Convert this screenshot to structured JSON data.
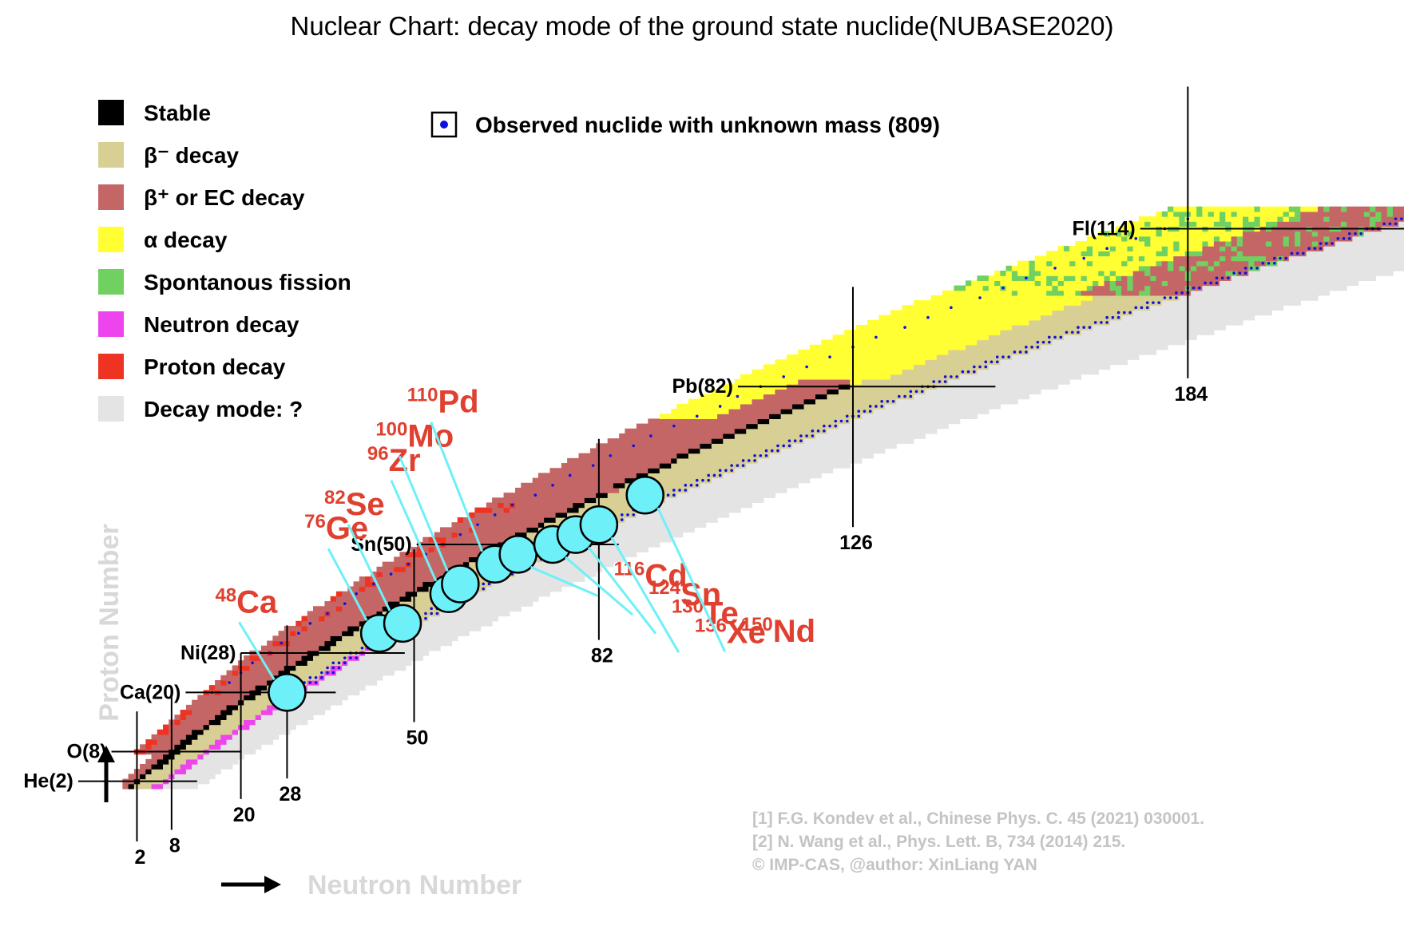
{
  "chart_data": {
    "type": "heatmap",
    "title": "Nuclear Chart: decay mode of the ground state nuclide(NUBASE2020)",
    "xlabel": "Neutron Number",
    "ylabel": "Proton Number",
    "legend": [
      {
        "key": "stable",
        "label": "Stable",
        "color": "#000000"
      },
      {
        "key": "beta_minus",
        "label": "β⁻ decay",
        "color": "#d8cf94"
      },
      {
        "key": "beta_plus",
        "label": "β⁺ or EC decay",
        "color": "#c46666"
      },
      {
        "key": "alpha",
        "label": "α decay",
        "color": "#ffff33"
      },
      {
        "key": "sf",
        "label": "Spontanous fission",
        "color": "#70d060"
      },
      {
        "key": "neutron",
        "label": "Neutron decay",
        "color": "#ee44ee"
      },
      {
        "key": "proton",
        "label": "Proton decay",
        "color": "#ee3322"
      },
      {
        "key": "unknown",
        "label": "Decay mode: ?",
        "color": "#e4e4e4"
      }
    ],
    "legend_unknown_mass": {
      "label": "Observed nuclide with unknown mass (809)",
      "color": "#1010dd"
    },
    "magic_protons": [
      {
        "label": "He(2)",
        "Z": 2
      },
      {
        "label": "O(8)",
        "Z": 8
      },
      {
        "label": "Ca(20)",
        "Z": 20
      },
      {
        "label": "Ni(28)",
        "Z": 28
      },
      {
        "label": "Sn(50)",
        "Z": 50
      },
      {
        "label": "Pb(82)",
        "Z": 82
      },
      {
        "label": "Fl(114)",
        "Z": 114
      }
    ],
    "magic_neutrons": [
      {
        "label": "2",
        "N": 2
      },
      {
        "label": "8",
        "N": 8
      },
      {
        "label": "20",
        "N": 20
      },
      {
        "label": "28",
        "N": 28
      },
      {
        "label": "50",
        "N": 50
      },
      {
        "label": "82",
        "N": 82
      },
      {
        "label": "126",
        "N": 126
      },
      {
        "label": "184",
        "N": 184
      }
    ],
    "highlighted_isotopes": [
      {
        "mass": "48",
        "symbol": "Ca",
        "Z": 20,
        "N": 28
      },
      {
        "mass": "76",
        "symbol": "Ge",
        "Z": 32,
        "N": 44
      },
      {
        "mass": "82",
        "symbol": "Se",
        "Z": 34,
        "N": 48
      },
      {
        "mass": "96",
        "symbol": "Zr",
        "Z": 40,
        "N": 56
      },
      {
        "mass": "100",
        "symbol": "Mo",
        "Z": 42,
        "N": 58
      },
      {
        "mass": "110",
        "symbol": "Pd",
        "Z": 46,
        "N": 64
      },
      {
        "mass": "116",
        "symbol": "Cd",
        "Z": 48,
        "N": 68
      },
      {
        "mass": "124",
        "symbol": "Sn",
        "Z": 50,
        "N": 74
      },
      {
        "mass": "130",
        "symbol": "Te",
        "Z": 52,
        "N": 78
      },
      {
        "mass": "136",
        "symbol": "Xe",
        "Z": 54,
        "N": 82
      },
      {
        "mass": "150",
        "symbol": "Nd",
        "Z": 60,
        "N": 90
      }
    ],
    "references": [
      "[1] F.G. Kondev  et al., Chinese Phys. C. 45 (2021) 030001.",
      "[2] N. Wang  et al., Phys. Lett. B, 734 (2014) 215.",
      "© IMP-CAS, @author: XinLiang YAN"
    ],
    "xlim": [
      0,
      196
    ],
    "ylim": [
      0,
      122
    ],
    "grid": false,
    "legend_position": "top-left"
  }
}
